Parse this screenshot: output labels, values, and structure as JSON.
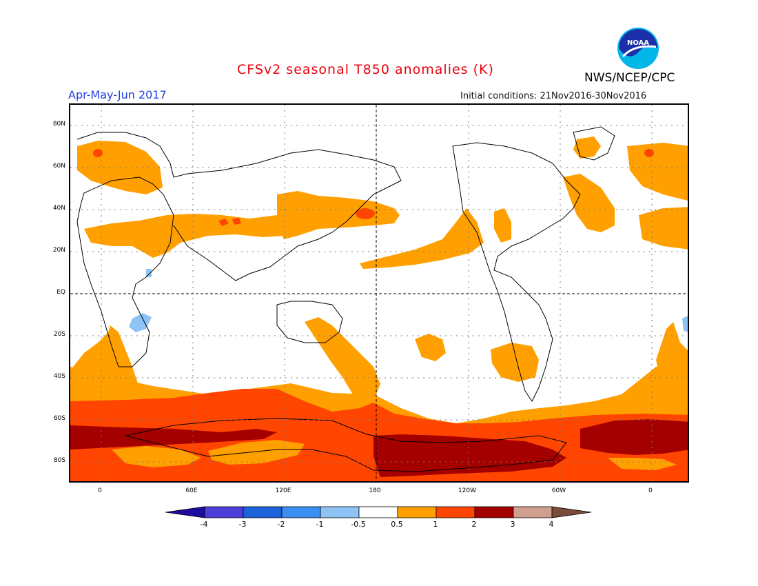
{
  "title": "CFSv2 seasonal T850 anomalies (K)",
  "season": "Apr-May-Jun 2017",
  "initial_conditions": "Initial conditions: 21Nov2016-30Nov2016",
  "agency": "NWS/NCEP/CPC",
  "logo_text": "NOAA",
  "lat_labels": [
    "80N",
    "60N",
    "40N",
    "20N",
    "EQ",
    "20S",
    "40S",
    "60S",
    "80S"
  ],
  "lon_labels": [
    "0",
    "60E",
    "120E",
    "180",
    "120W",
    "60W",
    "0"
  ],
  "colorbar": {
    "labels": [
      "-4",
      "-3",
      "-2",
      "-1",
      "-0.5",
      "0.5",
      "1",
      "2",
      "3",
      "4"
    ],
    "colors": [
      "#1e0ba0",
      "#4b3fd8",
      "#1d62d9",
      "#3b8ff0",
      "#8ec3f6",
      "#ffffff",
      "#ffa000",
      "#ff4500",
      "#a50000",
      "#cfa090",
      "#7a4a3a"
    ]
  },
  "colors": {
    "anom_0p5_1": "#ffa000",
    "anom_1_2": "#ff4500",
    "anom_2_3": "#a50000",
    "anom_neg_0p5_1": "#8ec3f6"
  }
}
